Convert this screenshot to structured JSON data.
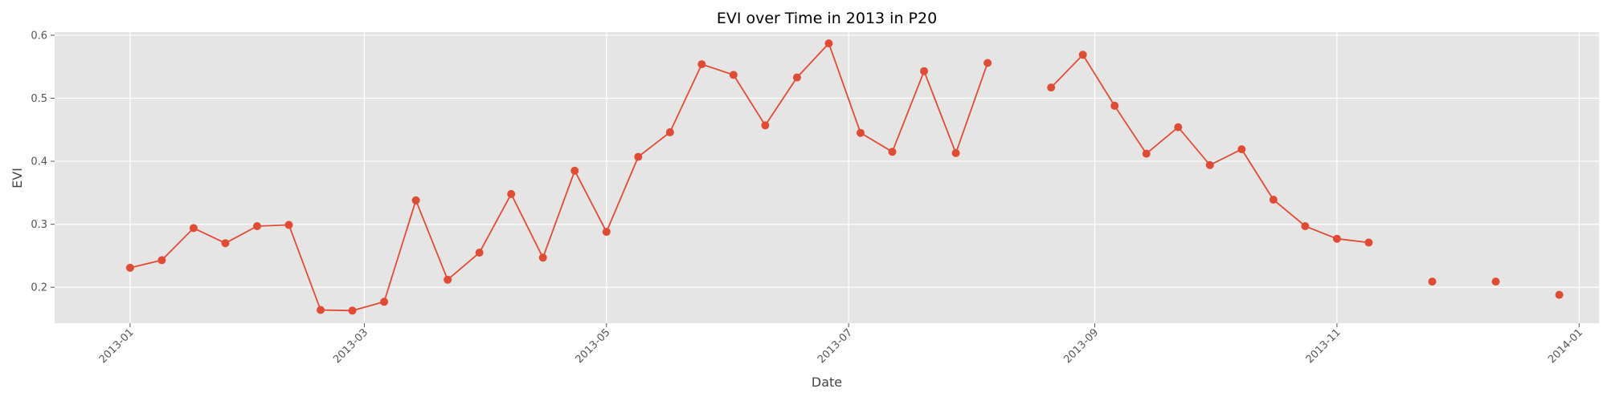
{
  "chart_data": {
    "type": "line",
    "title": "EVI over Time in 2013 in P20",
    "xlabel": "Date",
    "ylabel": "EVI",
    "x_ticks": [
      "2013-01",
      "2013-03",
      "2013-05",
      "2013-07",
      "2013-09",
      "2013-11",
      "2014-01"
    ],
    "y_ticks": [
      "0.2",
      "0.3",
      "0.4",
      "0.5",
      "0.6"
    ],
    "xlim": [
      "2012-12-13",
      "2014-01-06"
    ],
    "ylim": [
      0.143,
      0.605
    ],
    "grid": true,
    "colors": {
      "series": "#E24A33",
      "plot_background": "#E5E5E5",
      "grid": "#FFFFFF"
    },
    "series": [
      {
        "x": [
          "2013-01-01",
          "2013-01-09",
          "2013-01-17",
          "2013-01-25",
          "2013-02-02",
          "2013-02-10",
          "2013-02-18",
          "2013-02-26",
          "2013-03-06",
          "2013-03-14",
          "2013-03-22",
          "2013-03-30",
          "2013-04-07",
          "2013-04-15",
          "2013-04-23",
          "2013-05-01",
          "2013-05-09",
          "2013-05-17",
          "2013-05-25",
          "2013-06-02",
          "2013-06-10",
          "2013-06-18",
          "2013-06-26",
          "2013-07-04",
          "2013-07-12",
          "2013-07-20",
          "2013-07-28",
          "2013-08-05",
          "2013-08-13",
          "2013-08-21",
          "2013-08-29",
          "2013-09-06",
          "2013-09-14",
          "2013-09-22",
          "2013-09-30",
          "2013-10-08",
          "2013-10-16",
          "2013-10-24",
          "2013-11-01",
          "2013-11-09",
          "2013-11-17",
          "2013-11-25",
          "2013-12-03",
          "2013-12-11",
          "2013-12-19",
          "2013-12-27"
        ],
        "values": [
          0.231,
          0.243,
          0.294,
          0.27,
          0.297,
          0.299,
          0.164,
          0.163,
          0.177,
          0.338,
          0.212,
          0.255,
          0.348,
          0.247,
          0.385,
          0.288,
          0.407,
          0.446,
          0.554,
          0.537,
          0.457,
          0.533,
          0.587,
          0.445,
          0.415,
          0.543,
          0.413,
          0.556,
          null,
          0.517,
          0.569,
          0.488,
          0.412,
          0.454,
          0.394,
          0.419,
          0.339,
          0.297,
          0.277,
          0.271,
          null,
          0.209,
          null,
          0.209,
          null,
          0.188
        ]
      }
    ]
  }
}
